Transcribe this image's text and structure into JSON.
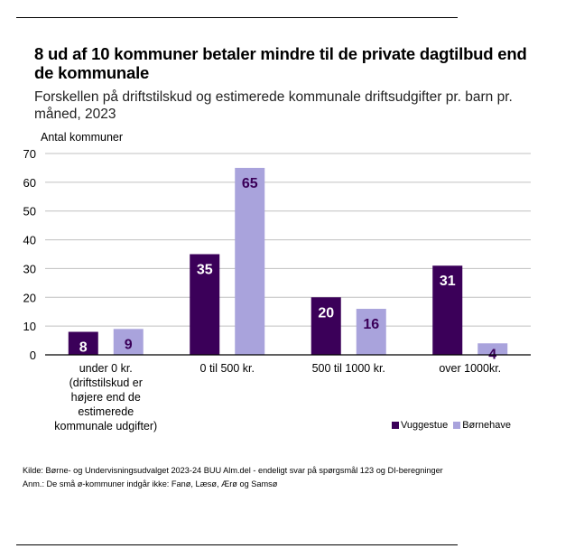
{
  "title": "8 ud af 10 kommuner betaler mindre til de private dagtilbud end de kommunale",
  "subtitle": "Forskellen på driftstilskud og estimerede kommunale driftsudgifter pr. barn pr. måned, 2023",
  "colors": {
    "vuggestue": "#3b0059",
    "bornehave": "#a9a3dc",
    "grid": "#c0c0c0",
    "axis": "#000000"
  },
  "chart_data": {
    "type": "bar",
    "title": "8 ud af 10 kommuner betaler mindre til de private dagtilbud end de kommunale",
    "subtitle": "Forskellen på driftstilskud og estimerede kommunale driftsudgifter pr. barn pr. måned, 2023",
    "xlabel": "",
    "ylabel": "Antal kommuner",
    "ylim": [
      0,
      70
    ],
    "yticks": [
      0,
      10,
      20,
      30,
      40,
      50,
      60,
      70
    ],
    "grid": true,
    "legend_position": "bottom-right",
    "categories": [
      "under 0 kr. (driftstilskud er højere end de estimerede kommunale udgifter)",
      "0 til 500 kr.",
      "500  til 1000 kr.",
      "over 1000kr."
    ],
    "category_lines": [
      [
        "under 0 kr.",
        "(driftstilskud er",
        "højere end de",
        "estimerede",
        "kommunale udgifter)"
      ],
      [
        "0 til 500 kr."
      ],
      [
        "500  til 1000 kr."
      ],
      [
        "over 1000kr."
      ]
    ],
    "series": [
      {
        "name": "Vuggestue",
        "values": [
          8,
          35,
          20,
          31
        ]
      },
      {
        "name": "Børnehave",
        "values": [
          9,
          65,
          16,
          4
        ]
      }
    ]
  },
  "footer": {
    "source": "Kilde: Børne- og Undervisningsudvalget 2023-24 BUU Alm.del - endeligt svar på spørgsmål 123 og DI-beregninger",
    "note": "Anm.: De små ø-kommuner indgår ikke: Fanø, Læsø, Ærø og Samsø"
  }
}
